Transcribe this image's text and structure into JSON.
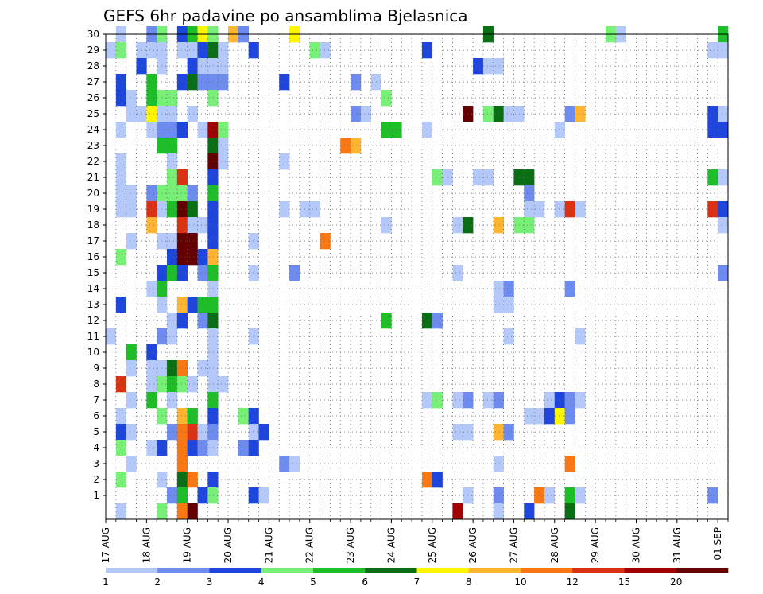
{
  "chart_data": {
    "type": "heatmap",
    "title": "GEFS 6hr padavine po ansamblima Bjelasnica",
    "xlabel": "",
    "ylabel": "",
    "x_tick_labels": [
      "17 AUG",
      "18 AUG",
      "19 AUG",
      "20 AUG",
      "21 AUG",
      "22 AUG",
      "23 AUG",
      "24 AUG",
      "25 AUG",
      "26 AUG",
      "27 AUG",
      "28 AUG",
      "29 AUG",
      "30 AUG",
      "31 AUG",
      "01 SEP"
    ],
    "y_tick_labels": [
      "1",
      "2",
      "3",
      "4",
      "5",
      "6",
      "7",
      "8",
      "9",
      "10",
      "11",
      "12",
      "13",
      "14",
      "15",
      "16",
      "17",
      "18",
      "19",
      "20",
      "21",
      "22",
      "23",
      "24",
      "25",
      "26",
      "27",
      "28",
      "29",
      "30"
    ],
    "members": 30,
    "time_steps": 61,
    "ylim": [
      0,
      30
    ],
    "grid": true,
    "colorbar": {
      "position": "bottom",
      "levels": [
        "1",
        "2",
        "3",
        "4",
        "5",
        "6",
        "7",
        "8",
        "10",
        "12",
        "15",
        "20"
      ],
      "colors": [
        "#b4c8fa",
        "#6e8cf0",
        "#1e46dc",
        "#78f078",
        "#1ebe28",
        "#0a6e14",
        "#fff500",
        "#ffb432",
        "#fa7814",
        "#dc3214",
        "#a00000",
        "#640000"
      ]
    },
    "cells": [
      [
        30,
        1,
        0
      ],
      [
        30,
        4,
        1
      ],
      [
        30,
        5,
        3
      ],
      [
        30,
        7,
        2
      ],
      [
        30,
        8,
        4
      ],
      [
        30,
        9,
        6
      ],
      [
        30,
        10,
        3
      ],
      [
        30,
        12,
        7
      ],
      [
        30,
        13,
        1
      ],
      [
        30,
        18,
        6
      ],
      [
        30,
        37,
        5
      ],
      [
        30,
        49,
        3
      ],
      [
        30,
        50,
        0
      ],
      [
        30,
        60,
        4
      ],
      [
        29,
        0,
        0
      ],
      [
        29,
        1,
        3
      ],
      [
        29,
        3,
        0
      ],
      [
        29,
        4,
        0
      ],
      [
        29,
        5,
        0
      ],
      [
        29,
        7,
        0
      ],
      [
        29,
        8,
        0
      ],
      [
        29,
        9,
        2
      ],
      [
        29,
        10,
        5
      ],
      [
        29,
        11,
        0
      ],
      [
        29,
        14,
        2
      ],
      [
        29,
        20,
        3
      ],
      [
        29,
        21,
        0
      ],
      [
        29,
        31,
        2
      ],
      [
        29,
        59,
        0
      ],
      [
        29,
        60,
        0
      ],
      [
        28,
        3,
        2
      ],
      [
        28,
        5,
        0
      ],
      [
        28,
        8,
        2
      ],
      [
        28,
        9,
        0
      ],
      [
        28,
        10,
        0
      ],
      [
        28,
        11,
        0
      ],
      [
        28,
        36,
        2
      ],
      [
        28,
        37,
        0
      ],
      [
        28,
        38,
        0
      ],
      [
        27,
        1,
        2
      ],
      [
        27,
        4,
        4
      ],
      [
        27,
        7,
        2
      ],
      [
        27,
        8,
        5
      ],
      [
        27,
        9,
        1
      ],
      [
        27,
        10,
        1
      ],
      [
        27,
        11,
        1
      ],
      [
        27,
        17,
        2
      ],
      [
        27,
        24,
        1
      ],
      [
        27,
        26,
        0
      ],
      [
        26,
        1,
        2
      ],
      [
        26,
        2,
        0
      ],
      [
        26,
        4,
        4
      ],
      [
        26,
        5,
        3
      ],
      [
        26,
        6,
        3
      ],
      [
        26,
        10,
        3
      ],
      [
        26,
        27,
        3
      ],
      [
        25,
        2,
        0
      ],
      [
        25,
        3,
        0
      ],
      [
        25,
        4,
        6
      ],
      [
        25,
        5,
        0
      ],
      [
        25,
        6,
        0
      ],
      [
        25,
        8,
        0
      ],
      [
        25,
        24,
        1
      ],
      [
        25,
        25,
        0
      ],
      [
        25,
        35,
        11
      ],
      [
        25,
        37,
        3
      ],
      [
        25,
        38,
        5
      ],
      [
        25,
        39,
        0
      ],
      [
        25,
        40,
        0
      ],
      [
        25,
        45,
        1
      ],
      [
        25,
        46,
        7
      ],
      [
        25,
        59,
        2
      ],
      [
        25,
        60,
        0
      ],
      [
        24,
        1,
        0
      ],
      [
        24,
        4,
        0
      ],
      [
        24,
        5,
        1
      ],
      [
        24,
        6,
        1
      ],
      [
        24,
        7,
        2
      ],
      [
        24,
        9,
        0
      ],
      [
        24,
        10,
        10
      ],
      [
        24,
        11,
        3
      ],
      [
        24,
        27,
        4
      ],
      [
        24,
        28,
        4
      ],
      [
        24,
        31,
        0
      ],
      [
        24,
        44,
        0
      ],
      [
        24,
        59,
        2
      ],
      [
        24,
        60,
        2
      ],
      [
        23,
        5,
        4
      ],
      [
        23,
        6,
        4
      ],
      [
        23,
        10,
        5
      ],
      [
        23,
        11,
        0
      ],
      [
        23,
        23,
        8
      ],
      [
        23,
        24,
        7
      ],
      [
        22,
        1,
        0
      ],
      [
        22,
        6,
        0
      ],
      [
        22,
        10,
        11
      ],
      [
        22,
        11,
        0
      ],
      [
        22,
        17,
        0
      ],
      [
        21,
        1,
        0
      ],
      [
        21,
        6,
        3
      ],
      [
        21,
        7,
        9
      ],
      [
        21,
        10,
        2
      ],
      [
        21,
        32,
        3
      ],
      [
        21,
        33,
        0
      ],
      [
        21,
        36,
        0
      ],
      [
        21,
        37,
        0
      ],
      [
        21,
        40,
        5
      ],
      [
        21,
        41,
        5
      ],
      [
        21,
        59,
        4
      ],
      [
        21,
        60,
        0
      ],
      [
        20,
        1,
        0
      ],
      [
        20,
        2,
        0
      ],
      [
        20,
        4,
        1
      ],
      [
        20,
        5,
        3
      ],
      [
        20,
        6,
        3
      ],
      [
        20,
        7,
        3
      ],
      [
        20,
        8,
        1
      ],
      [
        20,
        10,
        4
      ],
      [
        20,
        41,
        1
      ],
      [
        19,
        1,
        0
      ],
      [
        19,
        2,
        0
      ],
      [
        19,
        4,
        9
      ],
      [
        19,
        5,
        0
      ],
      [
        19,
        6,
        4
      ],
      [
        19,
        7,
        11
      ],
      [
        19,
        8,
        5
      ],
      [
        19,
        10,
        2
      ],
      [
        19,
        17,
        0
      ],
      [
        19,
        19,
        0
      ],
      [
        19,
        20,
        0
      ],
      [
        19,
        41,
        0
      ],
      [
        19,
        42,
        0
      ],
      [
        19,
        44,
        0
      ],
      [
        19,
        45,
        9
      ],
      [
        19,
        46,
        0
      ],
      [
        19,
        59,
        9
      ],
      [
        19,
        60,
        2
      ],
      [
        18,
        4,
        7
      ],
      [
        18,
        7,
        9
      ],
      [
        18,
        8,
        0
      ],
      [
        18,
        9,
        0
      ],
      [
        18,
        10,
        2
      ],
      [
        18,
        27,
        0
      ],
      [
        18,
        34,
        0
      ],
      [
        18,
        35,
        5
      ],
      [
        18,
        38,
        7
      ],
      [
        18,
        40,
        3
      ],
      [
        18,
        41,
        3
      ],
      [
        18,
        60,
        0
      ],
      [
        17,
        2,
        0
      ],
      [
        17,
        5,
        0
      ],
      [
        17,
        6,
        0
      ],
      [
        17,
        7,
        11
      ],
      [
        17,
        8,
        11
      ],
      [
        17,
        10,
        2
      ],
      [
        17,
        14,
        0
      ],
      [
        17,
        21,
        8
      ],
      [
        16,
        1,
        3
      ],
      [
        16,
        6,
        2
      ],
      [
        16,
        7,
        11
      ],
      [
        16,
        8,
        11
      ],
      [
        16,
        9,
        2
      ],
      [
        16,
        10,
        7
      ],
      [
        15,
        5,
        2
      ],
      [
        15,
        6,
        4
      ],
      [
        15,
        7,
        2
      ],
      [
        15,
        9,
        1
      ],
      [
        15,
        10,
        4
      ],
      [
        15,
        14,
        0
      ],
      [
        15,
        18,
        1
      ],
      [
        15,
        34,
        0
      ],
      [
        15,
        60,
        1
      ],
      [
        14,
        4,
        0
      ],
      [
        14,
        5,
        4
      ],
      [
        14,
        10,
        0
      ],
      [
        14,
        38,
        0
      ],
      [
        14,
        39,
        1
      ],
      [
        14,
        45,
        1
      ],
      [
        13,
        1,
        2
      ],
      [
        13,
        5,
        0
      ],
      [
        13,
        7,
        7
      ],
      [
        13,
        8,
        2
      ],
      [
        13,
        9,
        4
      ],
      [
        13,
        10,
        4
      ],
      [
        13,
        38,
        0
      ],
      [
        13,
        39,
        0
      ],
      [
        12,
        6,
        0
      ],
      [
        12,
        7,
        2
      ],
      [
        12,
        9,
        1
      ],
      [
        12,
        10,
        5
      ],
      [
        12,
        27,
        4
      ],
      [
        12,
        31,
        5
      ],
      [
        12,
        32,
        1
      ],
      [
        11,
        0,
        0
      ],
      [
        11,
        5,
        1
      ],
      [
        11,
        6,
        0
      ],
      [
        11,
        10,
        0
      ],
      [
        11,
        14,
        0
      ],
      [
        11,
        39,
        0
      ],
      [
        11,
        46,
        0
      ],
      [
        10,
        2,
        4
      ],
      [
        10,
        4,
        2
      ],
      [
        10,
        10,
        0
      ],
      [
        9,
        2,
        0
      ],
      [
        9,
        4,
        0
      ],
      [
        9,
        5,
        0
      ],
      [
        9,
        6,
        5
      ],
      [
        9,
        7,
        8
      ],
      [
        9,
        9,
        0
      ],
      [
        9,
        10,
        0
      ],
      [
        8,
        1,
        9
      ],
      [
        8,
        4,
        0
      ],
      [
        8,
        5,
        3
      ],
      [
        8,
        6,
        4
      ],
      [
        8,
        7,
        3
      ],
      [
        8,
        8,
        0
      ],
      [
        8,
        10,
        0
      ],
      [
        8,
        11,
        0
      ],
      [
        7,
        2,
        0
      ],
      [
        7,
        4,
        4
      ],
      [
        7,
        6,
        0
      ],
      [
        7,
        10,
        4
      ],
      [
        7,
        31,
        0
      ],
      [
        7,
        32,
        3
      ],
      [
        7,
        34,
        0
      ],
      [
        7,
        35,
        1
      ],
      [
        7,
        37,
        0
      ],
      [
        7,
        38,
        1
      ],
      [
        7,
        43,
        0
      ],
      [
        7,
        44,
        2
      ],
      [
        7,
        45,
        1
      ],
      [
        7,
        46,
        0
      ],
      [
        6,
        1,
        0
      ],
      [
        6,
        5,
        3
      ],
      [
        6,
        7,
        7
      ],
      [
        6,
        8,
        4
      ],
      [
        6,
        10,
        2
      ],
      [
        6,
        13,
        3
      ],
      [
        6,
        14,
        2
      ],
      [
        6,
        41,
        0
      ],
      [
        6,
        42,
        0
      ],
      [
        6,
        43,
        2
      ],
      [
        6,
        44,
        6
      ],
      [
        6,
        45,
        1
      ],
      [
        5,
        1,
        2
      ],
      [
        5,
        2,
        0
      ],
      [
        5,
        6,
        1
      ],
      [
        5,
        7,
        8
      ],
      [
        5,
        8,
        9
      ],
      [
        5,
        9,
        0
      ],
      [
        5,
        10,
        1
      ],
      [
        5,
        14,
        0
      ],
      [
        5,
        15,
        2
      ],
      [
        5,
        34,
        0
      ],
      [
        5,
        35,
        0
      ],
      [
        5,
        38,
        7
      ],
      [
        5,
        39,
        1
      ],
      [
        4,
        1,
        3
      ],
      [
        4,
        4,
        0
      ],
      [
        4,
        5,
        2
      ],
      [
        4,
        7,
        8
      ],
      [
        4,
        8,
        2
      ],
      [
        4,
        9,
        1
      ],
      [
        4,
        10,
        0
      ],
      [
        4,
        13,
        1
      ],
      [
        4,
        14,
        2
      ],
      [
        3,
        2,
        0
      ],
      [
        3,
        7,
        8
      ],
      [
        3,
        17,
        1
      ],
      [
        3,
        18,
        0
      ],
      [
        3,
        38,
        0
      ],
      [
        3,
        45,
        8
      ],
      [
        2,
        1,
        3
      ],
      [
        2,
        5,
        0
      ],
      [
        2,
        7,
        5
      ],
      [
        2,
        8,
        8
      ],
      [
        2,
        10,
        2
      ],
      [
        2,
        31,
        8
      ],
      [
        2,
        32,
        2
      ],
      [
        1,
        6,
        1
      ],
      [
        1,
        7,
        4
      ],
      [
        1,
        9,
        2
      ],
      [
        1,
        10,
        3
      ],
      [
        1,
        14,
        2
      ],
      [
        1,
        15,
        0
      ],
      [
        1,
        35,
        0
      ],
      [
        1,
        38,
        1
      ],
      [
        1,
        42,
        8
      ],
      [
        1,
        43,
        0
      ],
      [
        1,
        45,
        4
      ],
      [
        1,
        46,
        0
      ],
      [
        1,
        59,
        1
      ],
      [
        0,
        1,
        0
      ],
      [
        0,
        5,
        3
      ],
      [
        0,
        7,
        8
      ],
      [
        0,
        8,
        11
      ],
      [
        0,
        34,
        10
      ],
      [
        0,
        38,
        0
      ],
      [
        0,
        41,
        2
      ],
      [
        0,
        45,
        5
      ]
    ]
  }
}
